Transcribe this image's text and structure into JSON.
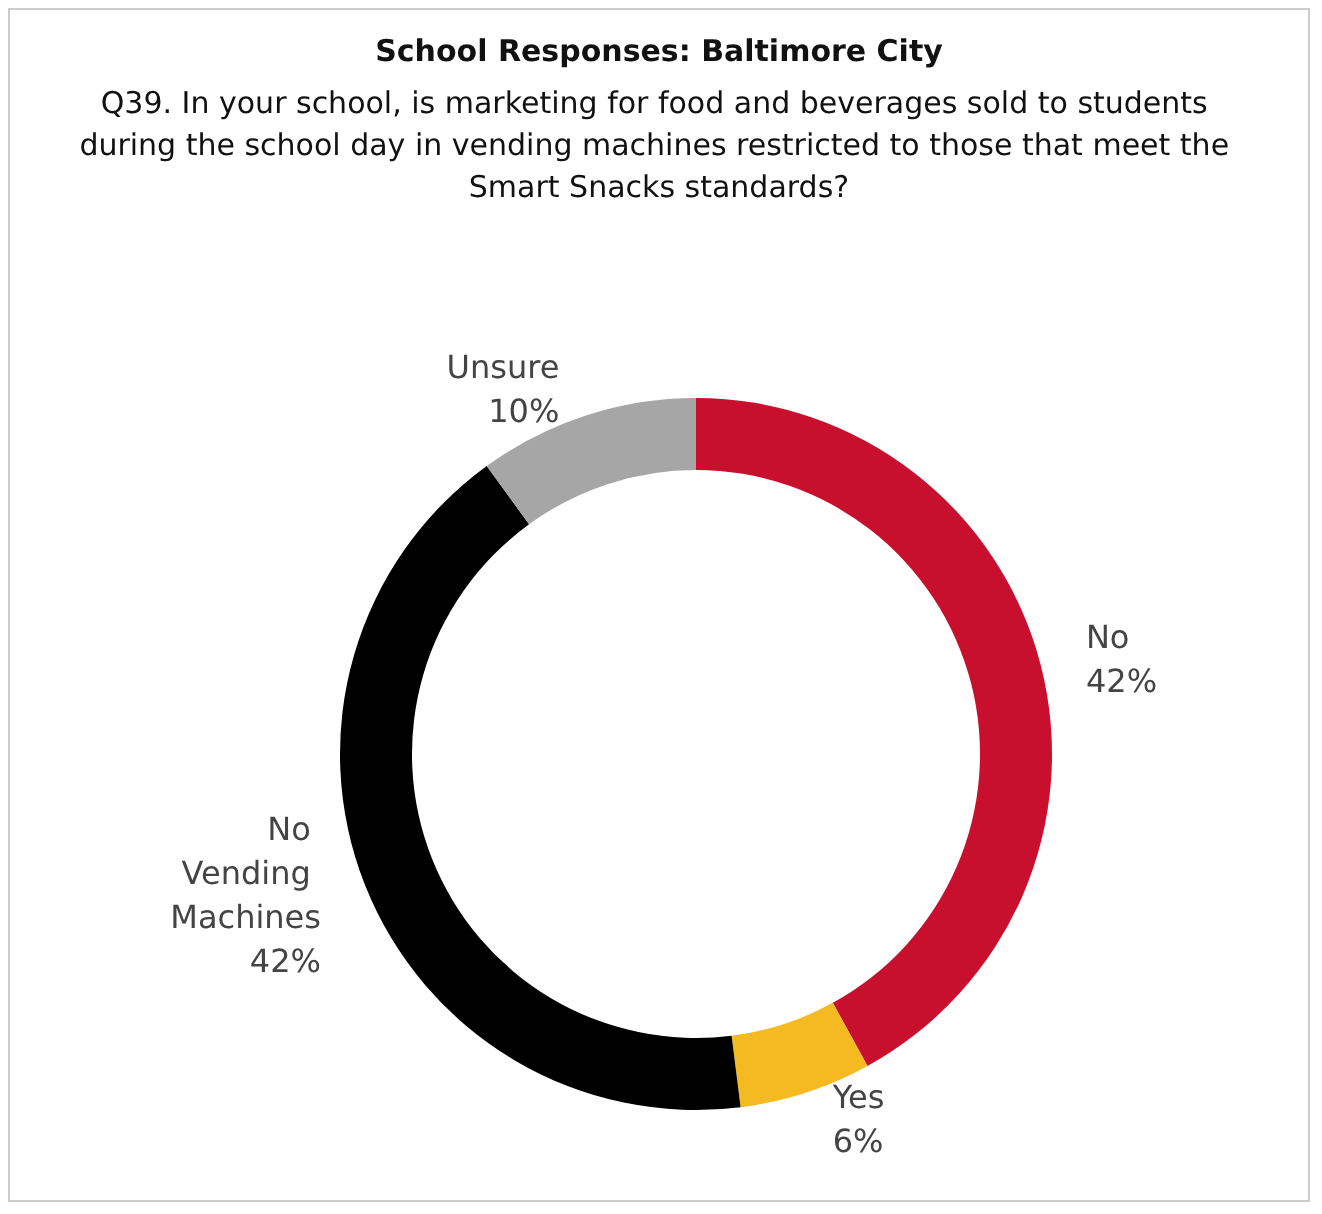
{
  "chart_data": {
    "type": "donut",
    "title": "School Responses: Baltimore City",
    "subtitle": "Q39. In your school, is marketing for food and beverages sold to students during the school day in vending machines restricted to those that meet the Smart Snacks standards?",
    "categories": [
      "No",
      "Yes",
      "No Vending Machines",
      "Unsure"
    ],
    "values": [
      42,
      6,
      42,
      10
    ],
    "colors": [
      "#c8102e",
      "#f5b921",
      "#000000",
      "#a6a6a6"
    ],
    "value_labels": [
      "42%",
      "6%",
      "42%",
      "10%"
    ],
    "legend": false
  }
}
